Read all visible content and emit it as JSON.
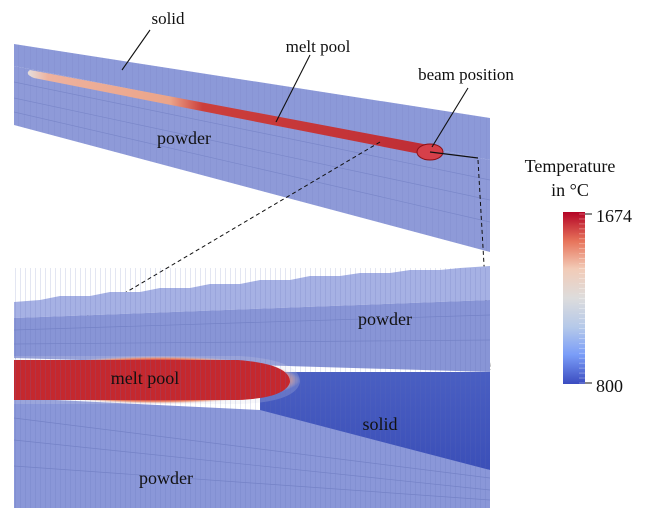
{
  "labels": {
    "top_solid": "solid",
    "top_melt_pool": "melt pool",
    "top_beam_position": "beam position",
    "top_powder": "powder",
    "bottom_powder_right": "powder",
    "bottom_melt_pool": "melt pool",
    "bottom_solid": "solid",
    "bottom_powder_left": "powder"
  },
  "colorbar": {
    "title_line1": "Temperature",
    "title_line2": "in °C",
    "max_label": "1674",
    "min_label": "800",
    "colors": [
      "#b40426",
      "#e7745b",
      "#f2cbb7",
      "#dddcdc",
      "#b5c9e9",
      "#7a9df8",
      "#3b4cc0"
    ]
  },
  "colors": {
    "powder": "#8996d6",
    "powder_light": "#a7b2e6",
    "solid_dark": "#4258bd",
    "melt": "#c1272d",
    "mesh_line": "#6f7cc2"
  }
}
